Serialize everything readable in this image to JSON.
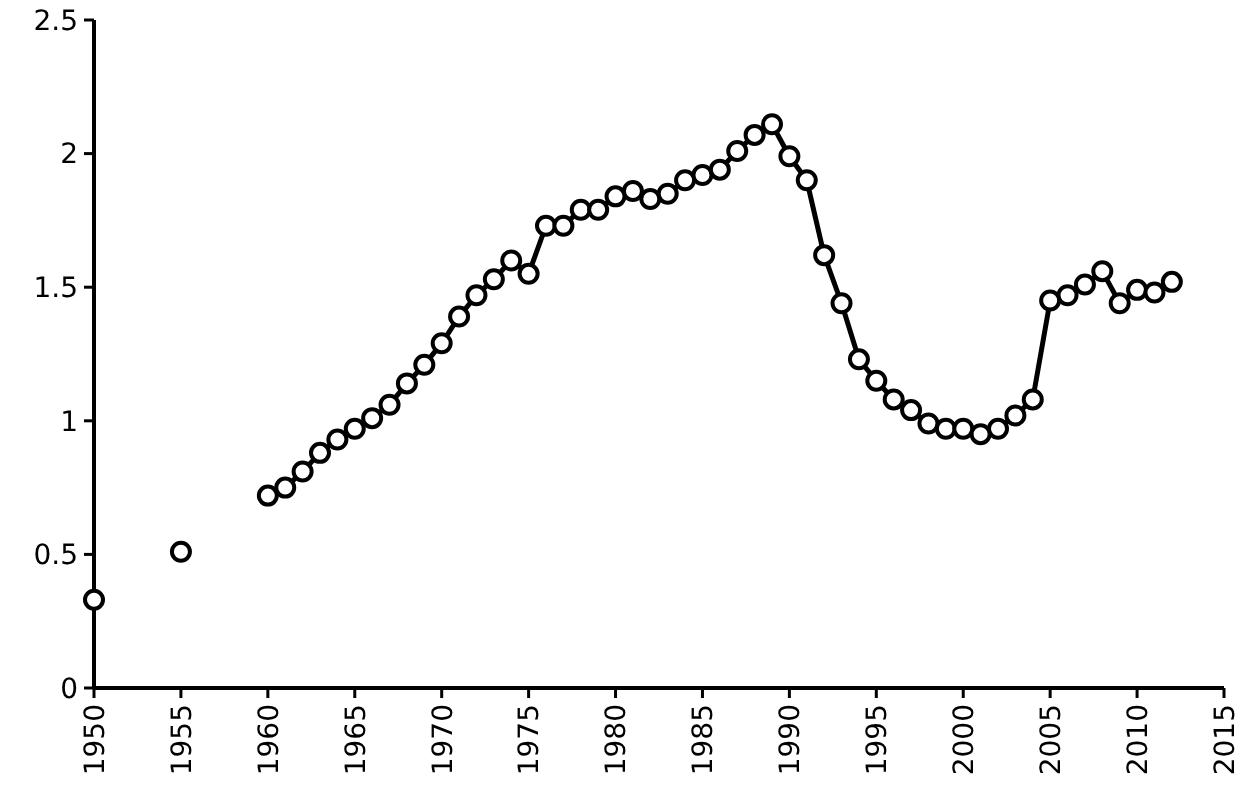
{
  "chart_data": {
    "type": "line",
    "xlim": [
      1950,
      2015
    ],
    "xticks": [
      1950,
      1955,
      1960,
      1965,
      1970,
      1975,
      1980,
      1985,
      1990,
      1995,
      2000,
      2005,
      2010,
      2015
    ],
    "ylim": [
      0,
      2.5
    ],
    "yticks": [
      0,
      0.5,
      1,
      1.5,
      2,
      2.5
    ],
    "marker": "circle",
    "line_style": "solid",
    "grid": false,
    "series": [
      {
        "type": "scatter",
        "color": "#000000",
        "x": [
          1950,
          1955
        ],
        "values": [
          0.33,
          0.51
        ]
      },
      {
        "color": "#000000",
        "x": [
          1960,
          1961,
          1962,
          1963,
          1964,
          1965,
          1966,
          1967,
          1968,
          1969,
          1970,
          1971,
          1972,
          1973,
          1974,
          1975,
          1976,
          1977,
          1978,
          1979,
          1980,
          1981,
          1982,
          1983,
          1984,
          1985,
          1986,
          1987,
          1988,
          1989,
          1990,
          1991,
          1992,
          1993,
          1994,
          1995,
          1996,
          1997,
          1998,
          1999,
          2000,
          2001,
          2002,
          2003,
          2004,
          2005,
          2006,
          2007,
          2008,
          2009,
          2010,
          2011,
          2012
        ],
        "values": [
          0.72,
          0.75,
          0.81,
          0.88,
          0.93,
          0.97,
          1.01,
          1.06,
          1.14,
          1.21,
          1.29,
          1.39,
          1.47,
          1.53,
          1.6,
          1.55,
          1.73,
          1.73,
          1.79,
          1.79,
          1.84,
          1.86,
          1.83,
          1.85,
          1.9,
          1.92,
          1.94,
          2.01,
          2.07,
          2.11,
          1.99,
          1.9,
          1.62,
          1.44,
          1.23,
          1.15,
          1.08,
          1.04,
          0.99,
          0.97,
          0.97,
          0.95,
          0.97,
          1.02,
          1.08,
          1.45,
          1.47,
          1.51,
          1.56,
          1.44,
          1.49,
          1.48,
          1.52
        ]
      }
    ]
  }
}
